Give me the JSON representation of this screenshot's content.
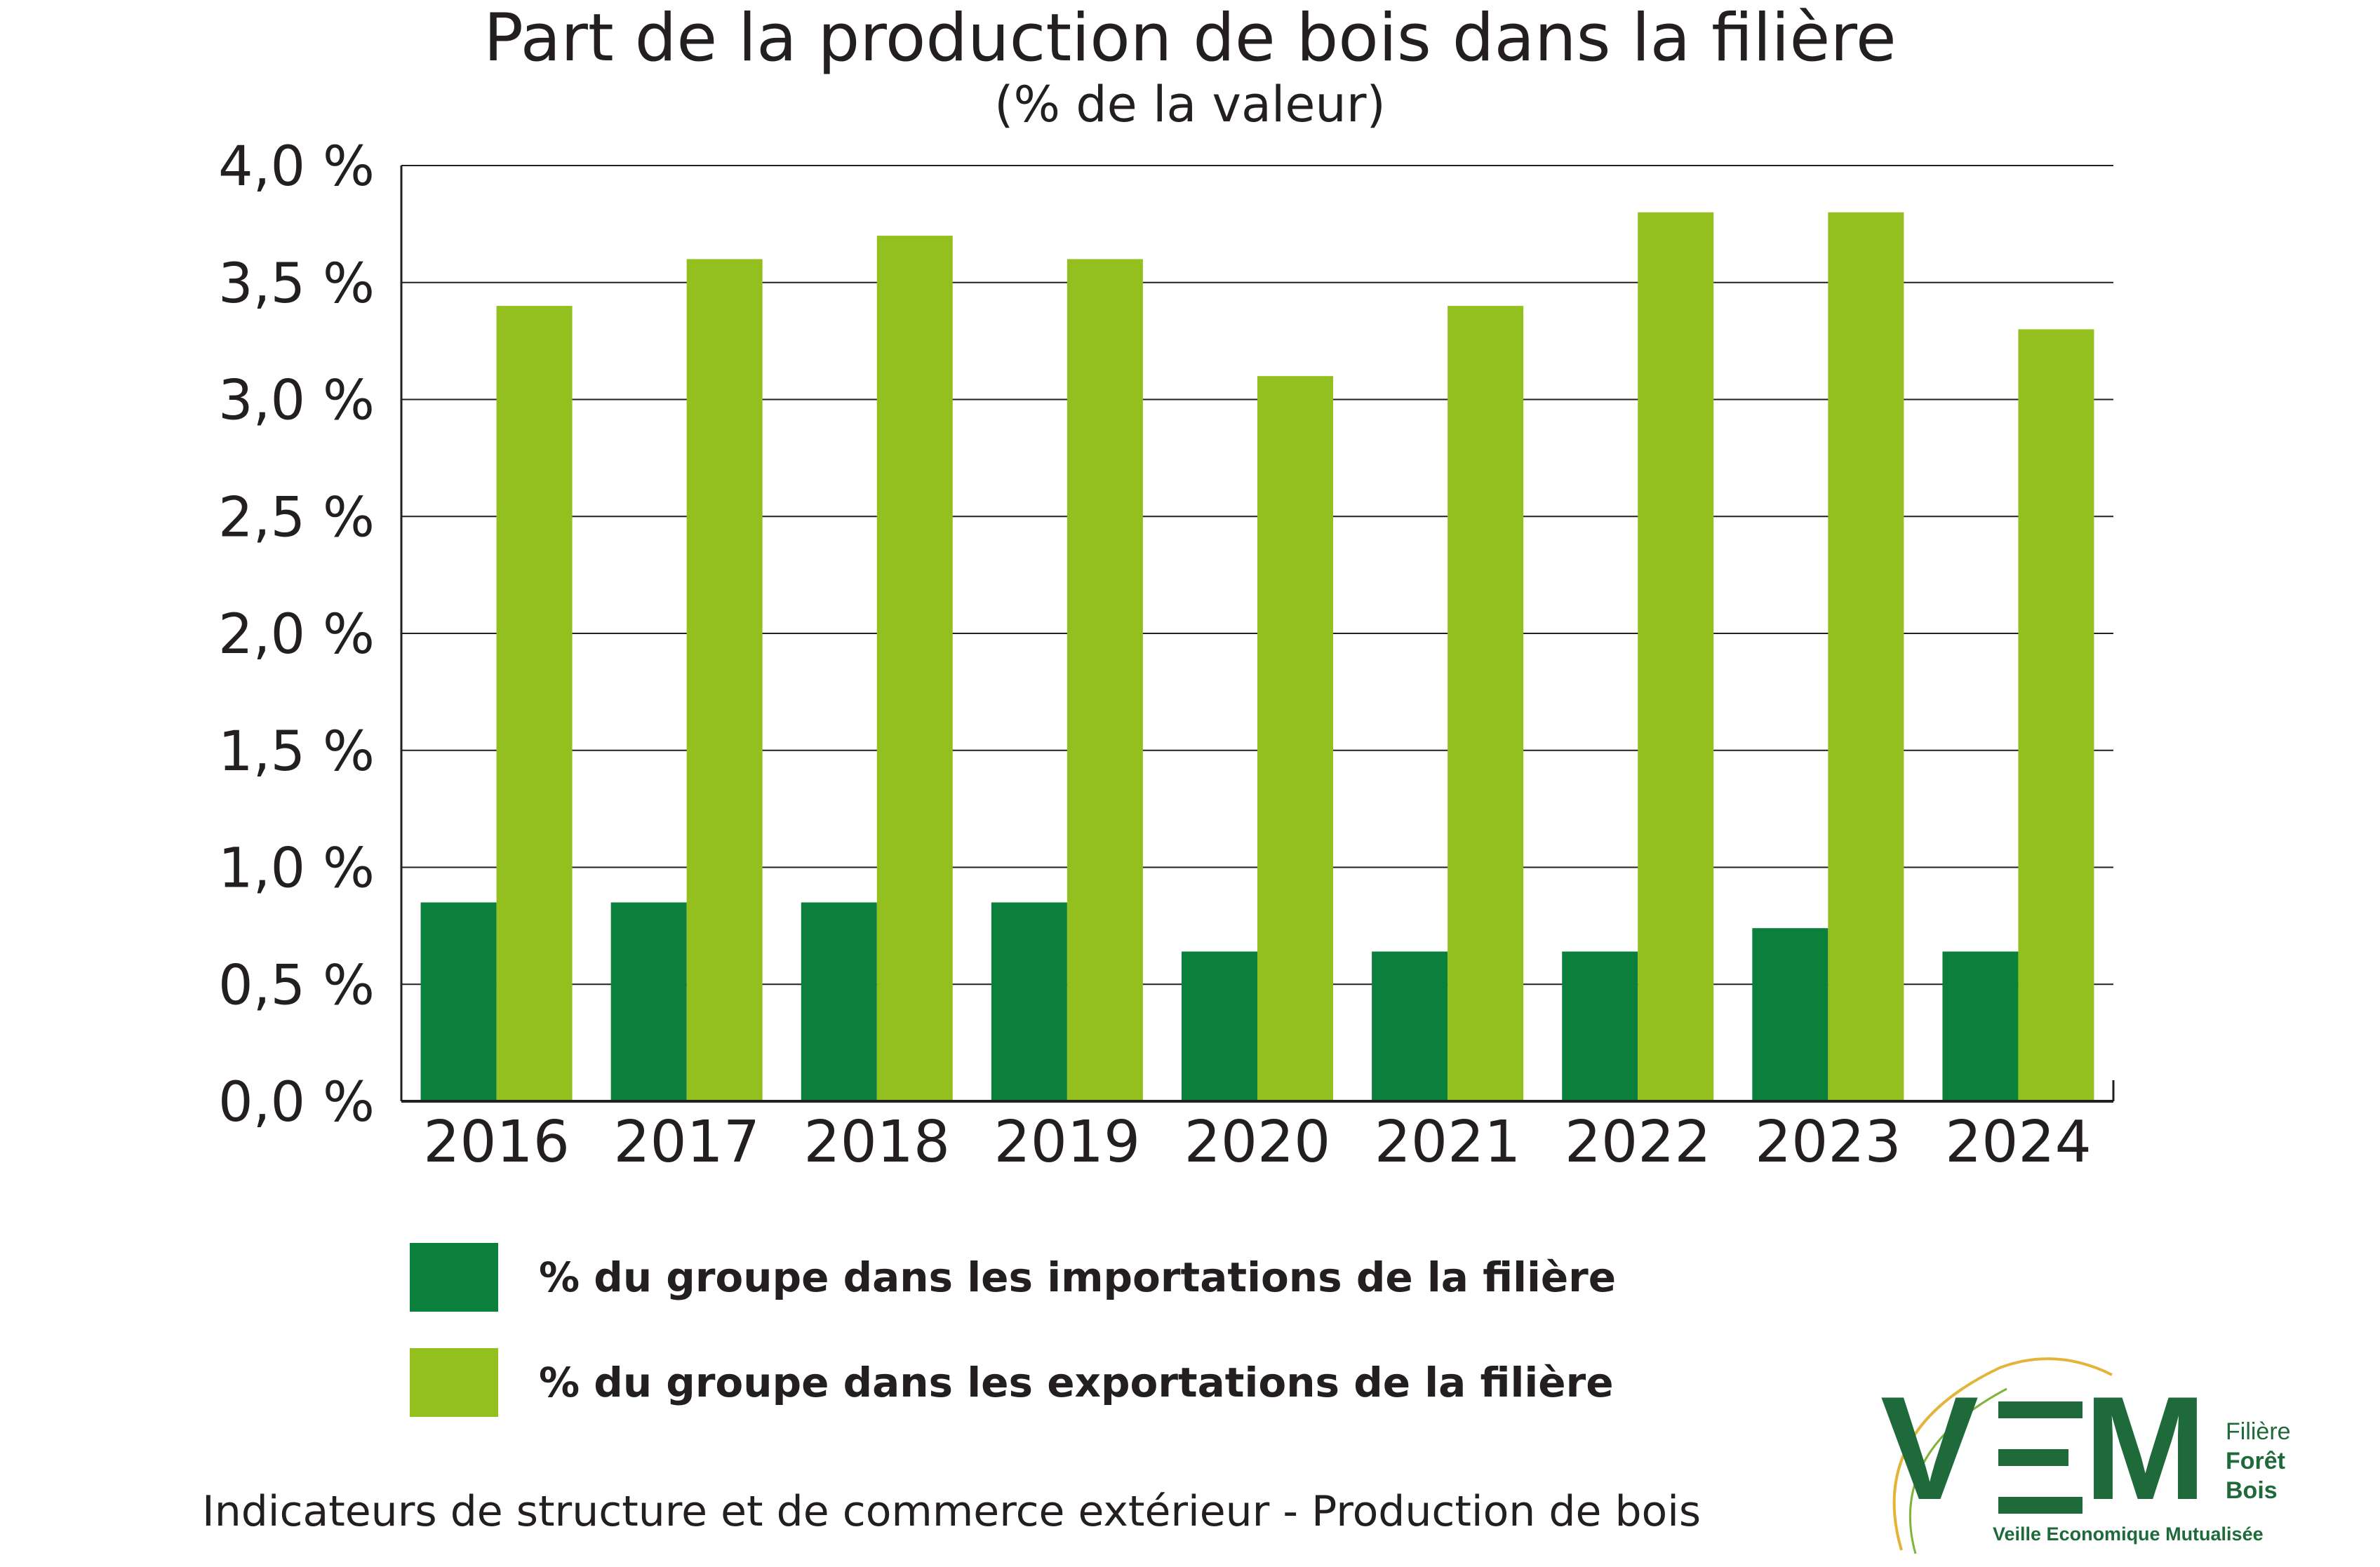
{
  "chart_data": {
    "type": "bar",
    "title": "Part de la production de bois dans la filière",
    "subtitle": "(% de la valeur)",
    "categories": [
      "2016",
      "2017",
      "2018",
      "2019",
      "2020",
      "2021",
      "2022",
      "2023",
      "2024"
    ],
    "series": [
      {
        "name": "% du groupe dans les importations de la filière",
        "color": "#0a803c",
        "values": [
          0.85,
          0.85,
          0.85,
          0.85,
          0.64,
          0.64,
          0.64,
          0.74,
          0.64
        ]
      },
      {
        "name": "% du groupe dans les exportations de la filière",
        "color": "#93c01f",
        "values": [
          3.4,
          3.6,
          3.7,
          3.6,
          3.1,
          3.4,
          3.8,
          3.8,
          3.3
        ]
      }
    ],
    "ylim": [
      0,
      4.0
    ],
    "yticks": [
      0,
      0.5,
      1.0,
      1.5,
      2.0,
      2.5,
      3.0,
      3.5,
      4.0
    ],
    "ytick_labels": [
      "0,0 %",
      "0,5 %",
      "1,0 %",
      "1,5 %",
      "2,0 %",
      "2,5 %",
      "3,0 %",
      "3,5 %",
      "4,0 %"
    ],
    "grid": true,
    "legend_position": "bottom"
  },
  "footer": "Indicateurs de structure et de commerce extérieur - Production de bois",
  "logo": {
    "letters_v": "V",
    "letters_m": "M",
    "filiere": "Filière",
    "foret": "Forêt",
    "bois": "Bois",
    "tagline": "Veille Economique Mutualisée"
  },
  "colors": {
    "dark_green": "#0a803c",
    "light_green": "#93c01f",
    "text": "#231f20",
    "logo_green": "#1f6a3a",
    "logo_gold": "#e2b53a"
  }
}
